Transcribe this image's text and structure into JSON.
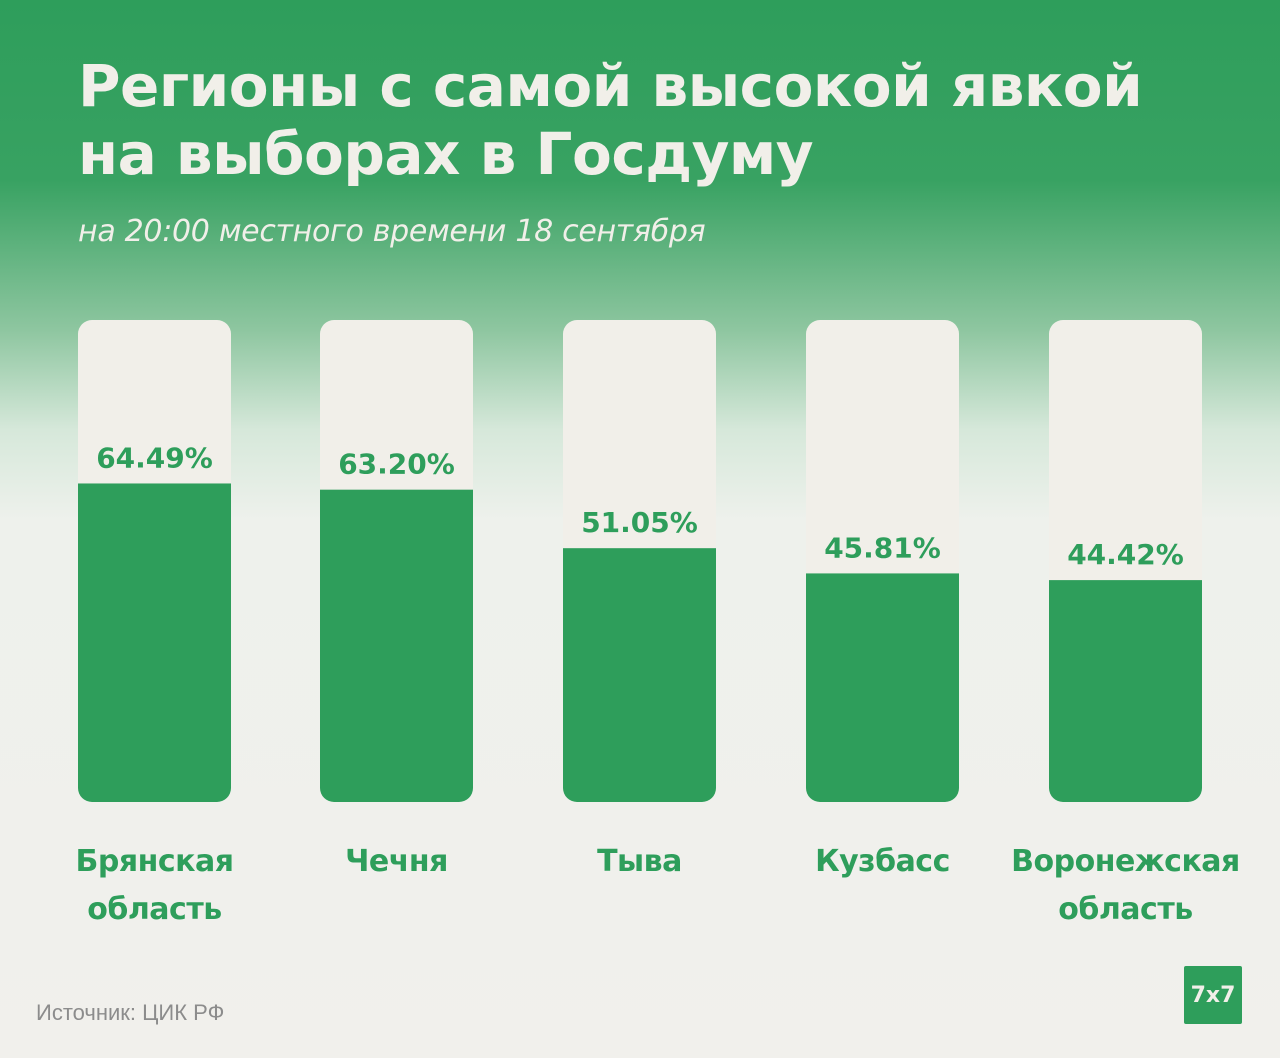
{
  "title_line1": "Регионы с самой высокой явкой",
  "title_line2": "на выборах в Госдуму",
  "subtitle": "на 20:00 местного времени 18 сентября",
  "source": "Источник: ЦИК РФ",
  "logo_text": "7x7",
  "colors": {
    "accent": "#2e9e5b",
    "bar_track": "#f1efe9",
    "background_bottom": "#f1f0ec"
  },
  "chart_data": {
    "type": "bar",
    "categories": [
      "Брянская область",
      "Чечня",
      "Тыва",
      "Кузбасс",
      "Воронежская область"
    ],
    "category_lines": [
      [
        "Брянская",
        "область"
      ],
      [
        "Чечня"
      ],
      [
        "Тыва"
      ],
      [
        "Кузбасс"
      ],
      [
        "Воронежская",
        "область"
      ]
    ],
    "values": [
      64.49,
      63.2,
      51.05,
      45.81,
      44.42
    ],
    "value_labels": [
      "64.49%",
      "63.20%",
      "51.05%",
      "45.81%",
      "44.42%"
    ],
    "title": "Регионы с самой высокой явкой на выборах в Госдуму",
    "subtitle": "на 20:00 местного времени 18 сентября",
    "ylim": [
      0,
      100
    ],
    "grid": false
  }
}
